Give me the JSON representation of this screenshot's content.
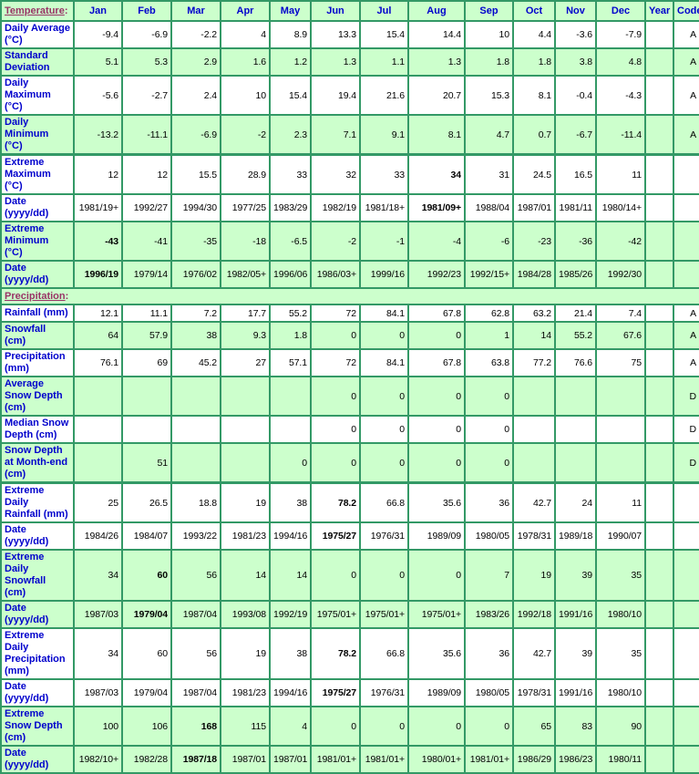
{
  "colors": {
    "border_green": "#339966",
    "row_green": "#ccffcc",
    "row_white": "#ffffff",
    "label_blue": "#0000cc",
    "section_maroon": "#993366",
    "value_black": "#000000"
  },
  "columns": [
    "Jan",
    "Feb",
    "Mar",
    "Apr",
    "May",
    "Jun",
    "Jul",
    "Aug",
    "Sep",
    "Oct",
    "Nov",
    "Dec",
    "Year",
    "Code"
  ],
  "sections": [
    {
      "label": "Temperature",
      "label_suffix": ":",
      "rows": [
        {
          "label": "Daily Average\n(°C)",
          "shade": "white",
          "thick_top": false,
          "bold": -1,
          "values": [
            "-9.4",
            "-6.9",
            "-2.2",
            "4",
            "8.9",
            "13.3",
            "15.4",
            "14.4",
            "10",
            "4.4",
            "-3.6",
            "-7.9"
          ],
          "year": "",
          "code": "A"
        },
        {
          "label": "Standard\nDeviation",
          "shade": "green",
          "thick_top": false,
          "bold": -1,
          "values": [
            "5.1",
            "5.3",
            "2.9",
            "1.6",
            "1.2",
            "1.3",
            "1.1",
            "1.3",
            "1.8",
            "1.8",
            "3.8",
            "4.8"
          ],
          "year": "",
          "code": "A"
        },
        {
          "label": "Daily\nMaximum\n(°C)",
          "shade": "white",
          "thick_top": false,
          "bold": -1,
          "values": [
            "-5.6",
            "-2.7",
            "2.4",
            "10",
            "15.4",
            "19.4",
            "21.6",
            "20.7",
            "15.3",
            "8.1",
            "-0.4",
            "-4.3"
          ],
          "year": "",
          "code": "A"
        },
        {
          "label": "Daily\nMinimum\n(°C)",
          "shade": "green",
          "thick_top": false,
          "bold": -1,
          "values": [
            "-13.2",
            "-11.1",
            "-6.9",
            "-2",
            "2.3",
            "7.1",
            "9.1",
            "8.1",
            "4.7",
            "0.7",
            "-6.7",
            "-11.4"
          ],
          "year": "",
          "code": "A"
        },
        {
          "label": "Extreme\nMaximum\n(°C)",
          "shade": "white",
          "thick_top": true,
          "bold": 7,
          "values": [
            "12",
            "12",
            "15.5",
            "28.9",
            "33",
            "32",
            "33",
            "34",
            "31",
            "24.5",
            "16.5",
            "11"
          ],
          "year": "",
          "code": ""
        },
        {
          "label": "Date\n(yyyy/dd)",
          "shade": "white",
          "thick_top": false,
          "bold": 7,
          "values": [
            "1981/19+",
            "1992/27",
            "1994/30",
            "1977/25",
            "1983/29",
            "1982/19",
            "1981/18+",
            "1981/09+",
            "1988/04",
            "1987/01",
            "1981/11",
            "1980/14+"
          ],
          "year": "",
          "code": ""
        },
        {
          "label": "Extreme\nMinimum\n(°C)",
          "shade": "green",
          "thick_top": false,
          "bold": 0,
          "values": [
            "-43",
            "-41",
            "-35",
            "-18",
            "-6.5",
            "-2",
            "-1",
            "-4",
            "-6",
            "-23",
            "-36",
            "-42"
          ],
          "year": "",
          "code": ""
        },
        {
          "label": "Date\n(yyyy/dd)",
          "shade": "green",
          "thick_top": false,
          "bold": 0,
          "values": [
            "1996/19",
            "1979/14",
            "1976/02",
            "1982/05+",
            "1996/06",
            "1986/03+",
            "1999/16",
            "1992/23",
            "1992/15+",
            "1984/28",
            "1985/26",
            "1992/30"
          ],
          "year": "",
          "code": ""
        }
      ]
    },
    {
      "label": "Precipitation",
      "label_suffix": ":",
      "rows": [
        {
          "label": "Rainfall (mm)",
          "shade": "white",
          "thick_top": false,
          "bold": -1,
          "values": [
            "12.1",
            "11.1",
            "7.2",
            "17.7",
            "55.2",
            "72",
            "84.1",
            "67.8",
            "62.8",
            "63.2",
            "21.4",
            "7.4"
          ],
          "year": "",
          "code": "A"
        },
        {
          "label": "Snowfall\n(cm)",
          "shade": "green",
          "thick_top": false,
          "bold": -1,
          "values": [
            "64",
            "57.9",
            "38",
            "9.3",
            "1.8",
            "0",
            "0",
            "0",
            "1",
            "14",
            "55.2",
            "67.6"
          ],
          "year": "",
          "code": "A"
        },
        {
          "label": "Precipitation\n(mm)",
          "shade": "white",
          "thick_top": false,
          "bold": -1,
          "values": [
            "76.1",
            "69",
            "45.2",
            "27",
            "57.1",
            "72",
            "84.1",
            "67.8",
            "63.8",
            "77.2",
            "76.6",
            "75"
          ],
          "year": "",
          "code": "A"
        },
        {
          "label": "Average\nSnow Depth\n(cm)",
          "shade": "green",
          "thick_top": false,
          "bold": -1,
          "values": [
            "",
            "",
            "",
            "",
            "",
            "0",
            "0",
            "0",
            "0",
            "",
            "",
            ""
          ],
          "year": "",
          "code": "D"
        },
        {
          "label": "Median Snow\nDepth (cm)",
          "shade": "white",
          "thick_top": false,
          "bold": -1,
          "values": [
            "",
            "",
            "",
            "",
            "",
            "0",
            "0",
            "0",
            "0",
            "",
            "",
            ""
          ],
          "year": "",
          "code": "D"
        },
        {
          "label": "Snow Depth\nat Month-end\n(cm)",
          "shade": "green",
          "thick_top": false,
          "bold": -1,
          "values": [
            "",
            "51",
            "",
            "",
            "0",
            "0",
            "0",
            "0",
            "0",
            "",
            "",
            ""
          ],
          "year": "",
          "code": "D"
        },
        {
          "label": "Extreme Daily\nRainfall (mm)",
          "shade": "white",
          "thick_top": true,
          "bold": 5,
          "values": [
            "25",
            "26.5",
            "18.8",
            "19",
            "38",
            "78.2",
            "66.8",
            "35.6",
            "36",
            "42.7",
            "24",
            "11"
          ],
          "year": "",
          "code": ""
        },
        {
          "label": "Date\n(yyyy/dd)",
          "shade": "white",
          "thick_top": false,
          "bold": 5,
          "values": [
            "1984/26",
            "1984/07",
            "1993/22",
            "1981/23",
            "1994/16",
            "1975/27",
            "1976/31",
            "1989/09",
            "1980/05",
            "1978/31",
            "1989/18",
            "1990/07"
          ],
          "year": "",
          "code": ""
        },
        {
          "label": "Extreme Daily\nSnowfall\n(cm)",
          "shade": "green",
          "thick_top": false,
          "bold": 1,
          "values": [
            "34",
            "60",
            "56",
            "14",
            "14",
            "0",
            "0",
            "0",
            "7",
            "19",
            "39",
            "35"
          ],
          "year": "",
          "code": ""
        },
        {
          "label": "Date\n(yyyy/dd)",
          "shade": "green",
          "thick_top": false,
          "bold": 1,
          "values": [
            "1987/03",
            "1979/04",
            "1987/04",
            "1993/08",
            "1992/19",
            "1975/01+",
            "1975/01+",
            "1975/01+",
            "1983/26",
            "1992/18",
            "1991/16",
            "1980/10"
          ],
          "year": "",
          "code": ""
        },
        {
          "label": "Extreme Daily\nPrecipitation\n(mm)",
          "shade": "white",
          "thick_top": false,
          "bold": 5,
          "values": [
            "34",
            "60",
            "56",
            "19",
            "38",
            "78.2",
            "66.8",
            "35.6",
            "36",
            "42.7",
            "39",
            "35"
          ],
          "year": "",
          "code": ""
        },
        {
          "label": "Date\n(yyyy/dd)",
          "shade": "white",
          "thick_top": false,
          "bold": 5,
          "values": [
            "1987/03",
            "1979/04",
            "1987/04",
            "1981/23",
            "1994/16",
            "1975/27",
            "1976/31",
            "1989/09",
            "1980/05",
            "1978/31",
            "1991/16",
            "1980/10"
          ],
          "year": "",
          "code": ""
        },
        {
          "label": "Extreme\nSnow Depth\n(cm)",
          "shade": "green",
          "thick_top": false,
          "bold": 2,
          "values": [
            "100",
            "106",
            "168",
            "115",
            "4",
            "0",
            "0",
            "0",
            "0",
            "65",
            "83",
            "90"
          ],
          "year": "",
          "code": ""
        },
        {
          "label": "Date\n(yyyy/dd)",
          "shade": "green",
          "thick_top": false,
          "bold": 2,
          "values": [
            "1982/10+",
            "1982/28",
            "1987/18",
            "1987/01",
            "1987/01",
            "1981/01+",
            "1981/01+",
            "1980/01+",
            "1981/01+",
            "1986/29",
            "1986/23",
            "1980/11"
          ],
          "year": "",
          "code": ""
        }
      ]
    }
  ]
}
